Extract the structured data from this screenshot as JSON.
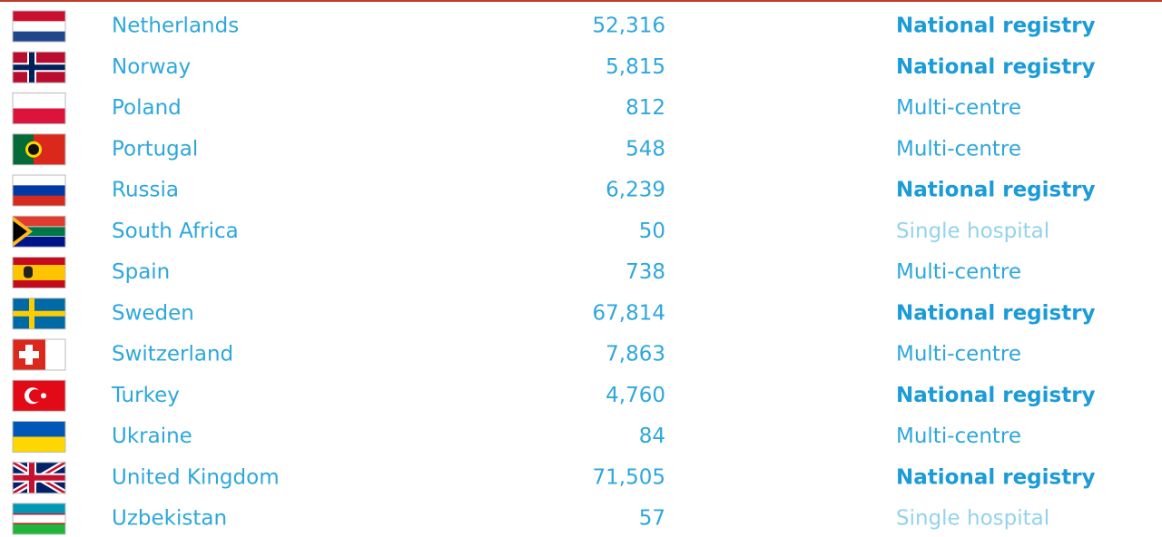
{
  "table": {
    "rows": [
      [
        "Netherlands",
        "52,316",
        "National registry"
      ],
      [
        "Norway",
        "5,815",
        "National registry"
      ],
      [
        "Poland",
        "812",
        "Multi-centre"
      ],
      [
        "Portugal",
        "548",
        "Multi-centre"
      ],
      [
        "Russia",
        "6,239",
        "National registry"
      ],
      [
        "South Africa",
        "50",
        "Single hospital"
      ],
      [
        "Spain",
        "738",
        "Multi-centre"
      ],
      [
        "Sweden",
        "67,814",
        "National registry"
      ],
      [
        "Switzerland",
        "7,863",
        "Multi-centre"
      ],
      [
        "Turkey",
        "4,760",
        "National registry"
      ],
      [
        "Ukraine",
        "84",
        "Multi-centre"
      ],
      [
        "United Kingdom",
        "71,505",
        "National registry"
      ],
      [
        "Uzbekistan",
        "57",
        "Single hospital"
      ]
    ]
  }
}
